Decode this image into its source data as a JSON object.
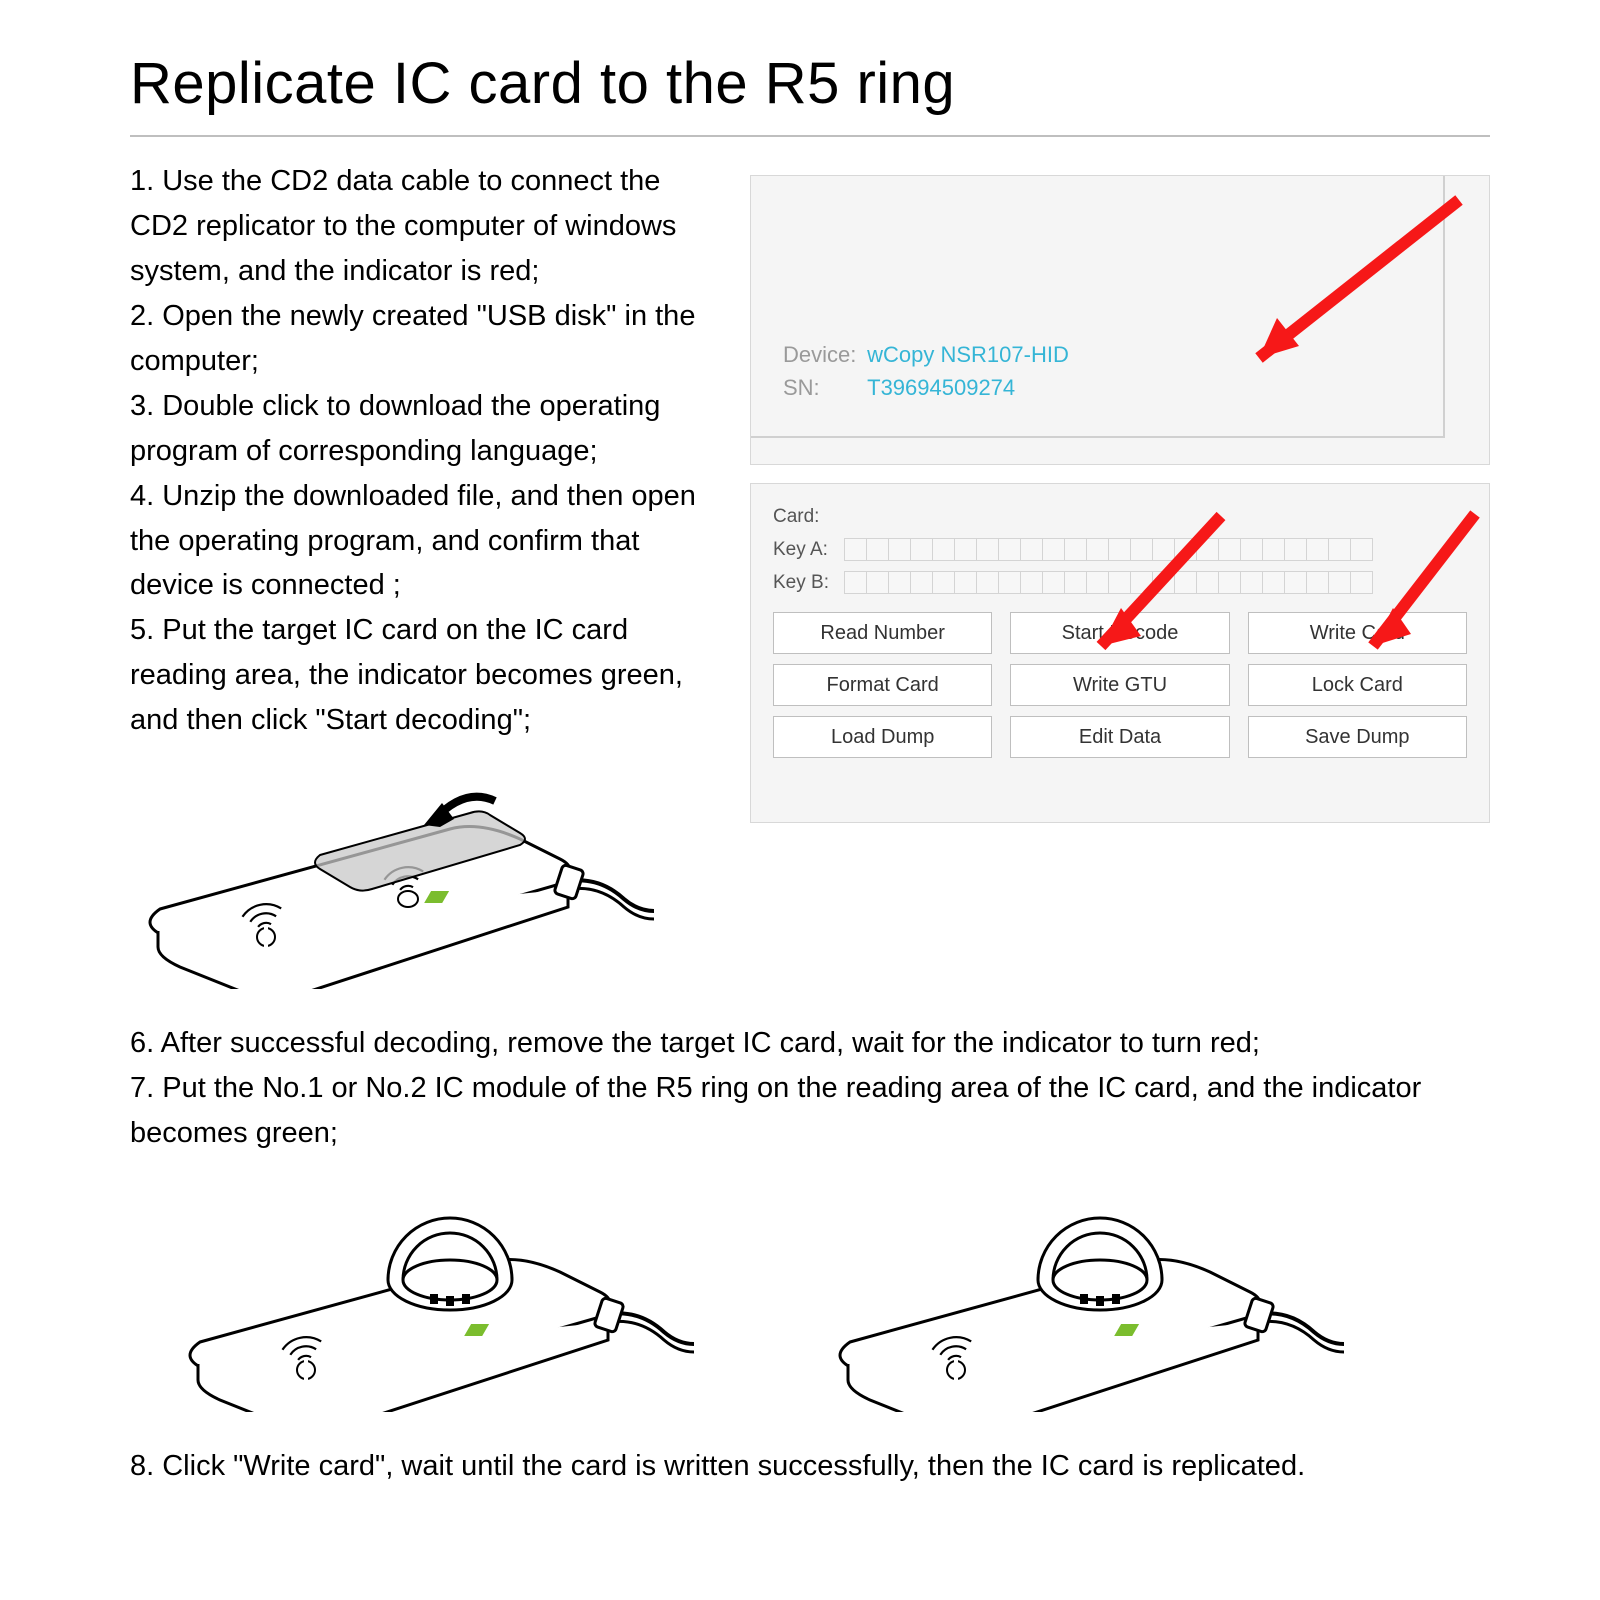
{
  "title": "Replicate IC card to the R5 ring",
  "steps_left": [
    "1. Use the CD2 data cable to connect the CD2 replicator to the computer of windows system, and the indicator is red;",
    "2. Open the newly created \"USB disk\" in the computer;",
    "3. Double click to download the operating program of corresponding language;",
    "4. Unzip the downloaded file, and then open the operating program, and confirm that device is connected ;",
    "5. Put the target IC card on the IC card reading area, the indicator becomes green, and then click \"Start decoding\";"
  ],
  "device_info": {
    "device_label": "Device:",
    "device_value": "wCopy NSR107-HID",
    "sn_label": "SN:",
    "sn_value": "T39694509274"
  },
  "panel_fields": {
    "card_label": "Card:",
    "keya_label": "Key A:",
    "keyb_label": "Key B:",
    "hex_count": 24
  },
  "buttons": [
    "Read Number",
    "Start Decode",
    "Write Card",
    "Format Card",
    "Write GTU",
    "Lock Card",
    "Load Dump",
    "Edit Data",
    "Save Dump"
  ],
  "steps_lower": [
    "6. After successful decoding, remove the target IC card, wait for the indicator to turn red;",
    "7. Put the No.1 or No.2 IC module of the R5 ring on the reading area of the IC card, and the indicator becomes green;"
  ],
  "step8": "8. Click \"Write card\", wait until the card is written successfully, then the IC card is replicated.",
  "colors": {
    "arrow": "#f61818",
    "link": "#35b5d6",
    "indicator": "#7bbd2e",
    "panel_bg": "#f5f5f5",
    "border": "#d8d8d8"
  }
}
